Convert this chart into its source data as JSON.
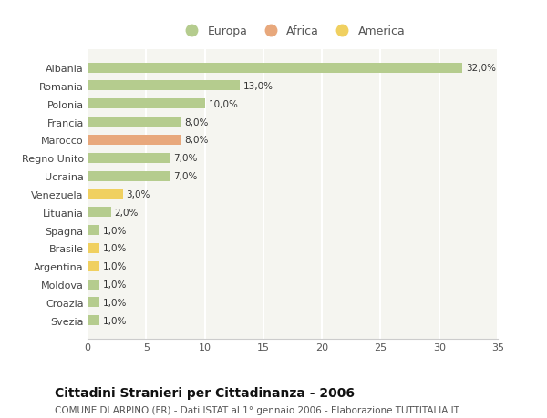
{
  "countries": [
    "Albania",
    "Romania",
    "Polonia",
    "Francia",
    "Marocco",
    "Regno Unito",
    "Ucraina",
    "Venezuela",
    "Lituania",
    "Spagna",
    "Brasile",
    "Argentina",
    "Moldova",
    "Croazia",
    "Svezia"
  ],
  "values": [
    32.0,
    13.0,
    10.0,
    8.0,
    8.0,
    7.0,
    7.0,
    3.0,
    2.0,
    1.0,
    1.0,
    1.0,
    1.0,
    1.0,
    1.0
  ],
  "continents": [
    "Europa",
    "Europa",
    "Europa",
    "Europa",
    "Africa",
    "Europa",
    "Europa",
    "America",
    "Europa",
    "Europa",
    "America",
    "America",
    "Europa",
    "Europa",
    "Europa"
  ],
  "colors": {
    "Europa": "#b5cc8e",
    "Africa": "#e8a87c",
    "America": "#f0d060"
  },
  "xlim": [
    0,
    35
  ],
  "xticks": [
    0,
    5,
    10,
    15,
    20,
    25,
    30,
    35
  ],
  "title": "Cittadini Stranieri per Cittadinanza - 2006",
  "subtitle": "COMUNE DI ARPINO (FR) - Dati ISTAT al 1° gennaio 2006 - Elaborazione TUTTITALIA.IT",
  "bg_color": "#ffffff",
  "plot_bg_color": "#f5f5f0",
  "bar_height": 0.55,
  "label_fontsize": 7.5,
  "ytick_fontsize": 8,
  "xtick_fontsize": 8,
  "title_fontsize": 10,
  "subtitle_fontsize": 7.5,
  "legend_fontsize": 9
}
